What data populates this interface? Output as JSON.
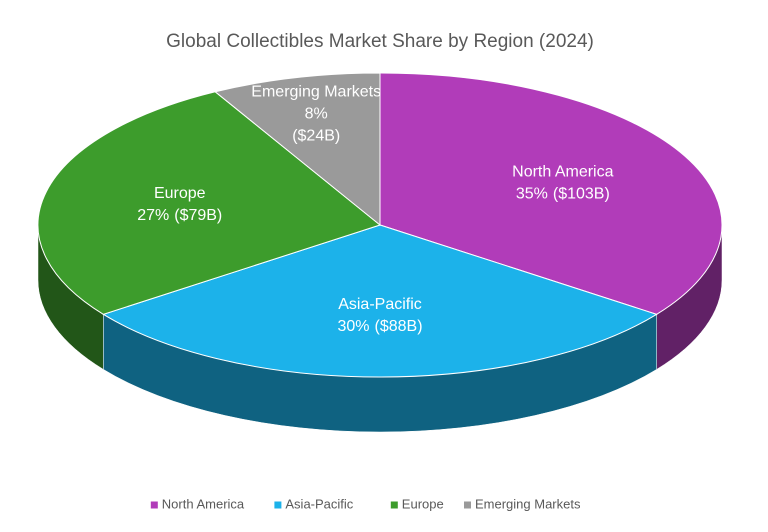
{
  "chart_data": {
    "type": "pie",
    "title": "Global Collectibles Market Share by Region (2024)",
    "categories": [
      "North America",
      "Asia-Pacific",
      "Europe",
      "Emerging Markets"
    ],
    "values": [
      35,
      30,
      27,
      8
    ],
    "value_labels": [
      "35%",
      "30%",
      "27%",
      "8%"
    ],
    "amount_labels": [
      "($103B)",
      "($88B)",
      "($79B)",
      "($24B)"
    ],
    "colors": [
      "#b13cb9",
      "#1cb2ea",
      "#3d9c2c",
      "#9a9a9a"
    ],
    "legend": "bottom"
  }
}
